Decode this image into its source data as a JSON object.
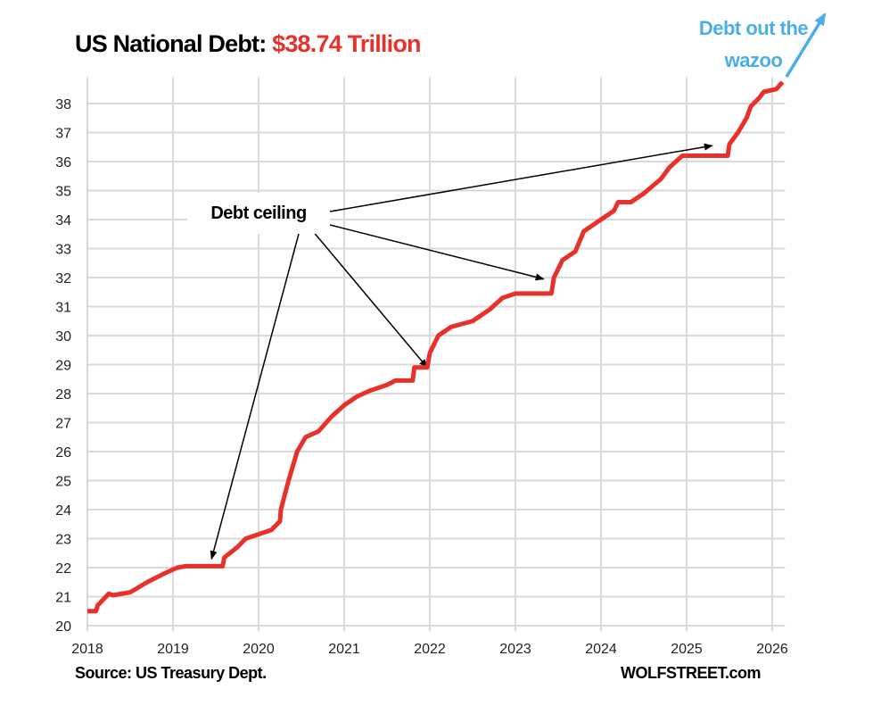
{
  "chart_data": {
    "type": "line",
    "title": "US National Debt:",
    "title_value": "$38.74 Trillion",
    "xlabel": "",
    "ylabel": "",
    "xlim": [
      2018,
      2026.15
    ],
    "ylim": [
      20,
      38.9
    ],
    "x_ticks": [
      "2018",
      "2019",
      "2020",
      "2021",
      "2022",
      "2023",
      "2024",
      "2025",
      "2026"
    ],
    "y_ticks": [
      "20",
      "21",
      "22",
      "23",
      "24",
      "25",
      "26",
      "27",
      "28",
      "29",
      "30",
      "31",
      "32",
      "33",
      "34",
      "35",
      "36",
      "37",
      "38"
    ],
    "grid": true,
    "line_color": "#e8312a",
    "series": [
      {
        "x": [
          2018.0,
          2018.1,
          2018.12,
          2018.25,
          2018.3,
          2018.5,
          2018.7,
          2018.9,
          2019.05,
          2019.15,
          2019.58,
          2019.6,
          2019.75,
          2019.85,
          2020.0,
          2020.15,
          2020.25,
          2020.26,
          2020.35,
          2020.45,
          2020.55,
          2020.7,
          2020.85,
          2021.0,
          2021.15,
          2021.3,
          2021.5,
          2021.6,
          2021.8,
          2021.82,
          2021.97,
          2022.0,
          2022.1,
          2022.25,
          2022.5,
          2022.7,
          2022.85,
          2023.0,
          2023.42,
          2023.45,
          2023.55,
          2023.7,
          2023.8,
          2024.0,
          2024.15,
          2024.2,
          2024.35,
          2024.5,
          2024.7,
          2024.8,
          2024.95,
          2025.0,
          2025.48,
          2025.5,
          2025.6,
          2025.7,
          2025.75,
          2025.85,
          2025.9,
          2026.05,
          2026.12
        ],
        "y": [
          20.5,
          20.5,
          20.7,
          21.1,
          21.05,
          21.15,
          21.5,
          21.8,
          22.0,
          22.05,
          22.05,
          22.35,
          22.7,
          23.0,
          23.15,
          23.3,
          23.6,
          24.0,
          25.0,
          26.0,
          26.5,
          26.7,
          27.2,
          27.6,
          27.9,
          28.1,
          28.3,
          28.45,
          28.45,
          28.9,
          28.9,
          29.4,
          30.0,
          30.3,
          30.5,
          30.9,
          31.3,
          31.45,
          31.45,
          32.0,
          32.6,
          32.9,
          33.6,
          34.0,
          34.3,
          34.6,
          34.6,
          34.9,
          35.4,
          35.8,
          36.2,
          36.2,
          36.2,
          36.6,
          37.0,
          37.5,
          37.9,
          38.2,
          38.4,
          38.5,
          38.74
        ]
      }
    ],
    "annotations": {
      "debt_ceiling": "Debt ceiling",
      "debt_ceiling_points": [
        [
          2019.45,
          22.3
        ],
        [
          2021.97,
          28.9
        ],
        [
          2023.33,
          31.95
        ],
        [
          2025.3,
          36.55
        ]
      ],
      "wazoo": [
        "Debt out the",
        "wazoo"
      ],
      "wazoo_color": "#4aaee8"
    },
    "source": "Source: US Treasury Dept.",
    "brand": "WOLFSTREET.com"
  }
}
